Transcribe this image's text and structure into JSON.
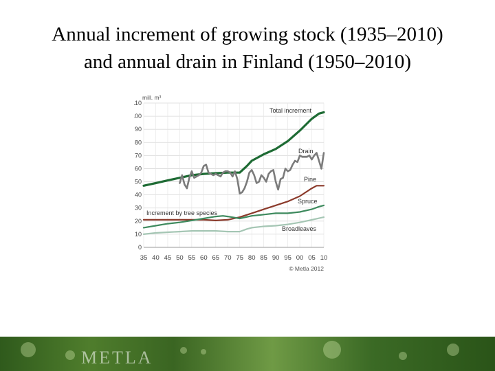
{
  "slide": {
    "title_line1": "Annual increment of growing stock (1935–2010)",
    "title_line2": "and annual drain in Finland (1950–2010)"
  },
  "footer": {
    "logo_text": "METLA"
  },
  "chart_data": {
    "type": "line",
    "y_unit_label": "mill. m³",
    "x_tick_labels": [
      "35",
      "40",
      "45",
      "50",
      "55",
      "60",
      "65",
      "70",
      "75",
      "80",
      "85",
      "90",
      "95",
      "00",
      "05",
      "10"
    ],
    "x_ticks": [
      1935,
      1940,
      1945,
      1950,
      1955,
      1960,
      1965,
      1970,
      1975,
      1980,
      1985,
      1990,
      1995,
      2000,
      2005,
      2010
    ],
    "xlim": [
      1935,
      2010
    ],
    "y_ticks": [
      0,
      10,
      20,
      30,
      40,
      50,
      60,
      70,
      80,
      90,
      100,
      110
    ],
    "ylim": [
      0,
      110
    ],
    "grid": true,
    "credit": "© Metla 2012",
    "annotation": "Increment by tree species",
    "series": [
      {
        "name": "Total increment",
        "color": "#1e6b34",
        "width": 3.2,
        "points": [
          [
            1935,
            47
          ],
          [
            1940,
            49
          ],
          [
            1945,
            51
          ],
          [
            1950,
            53
          ],
          [
            1955,
            55
          ],
          [
            1960,
            56
          ],
          [
            1965,
            56.5
          ],
          [
            1970,
            57
          ],
          [
            1975,
            57
          ],
          [
            1978,
            62
          ],
          [
            1980,
            66
          ],
          [
            1985,
            71
          ],
          [
            1990,
            75
          ],
          [
            1995,
            81
          ],
          [
            2000,
            89
          ],
          [
            2005,
            98
          ],
          [
            2008,
            102
          ],
          [
            2010,
            103
          ]
        ]
      },
      {
        "name": "Drain",
        "color": "#7b7b7b",
        "width": 2.6,
        "points": [
          [
            1950,
            49
          ],
          [
            1951,
            55
          ],
          [
            1952,
            48
          ],
          [
            1953,
            45
          ],
          [
            1954,
            53
          ],
          [
            1955,
            58
          ],
          [
            1956,
            53
          ],
          [
            1957,
            54
          ],
          [
            1958,
            55
          ],
          [
            1959,
            57
          ],
          [
            1960,
            62
          ],
          [
            1961,
            63
          ],
          [
            1962,
            57
          ],
          [
            1963,
            56
          ],
          [
            1964,
            55
          ],
          [
            1965,
            56
          ],
          [
            1966,
            55
          ],
          [
            1967,
            54
          ],
          [
            1968,
            57
          ],
          [
            1969,
            58
          ],
          [
            1970,
            58
          ],
          [
            1971,
            57
          ],
          [
            1972,
            54
          ],
          [
            1973,
            58
          ],
          [
            1974,
            52
          ],
          [
            1975,
            41
          ],
          [
            1976,
            42
          ],
          [
            1977,
            45
          ],
          [
            1978,
            50
          ],
          [
            1979,
            57
          ],
          [
            1980,
            59
          ],
          [
            1981,
            55
          ],
          [
            1982,
            49
          ],
          [
            1983,
            50
          ],
          [
            1984,
            55
          ],
          [
            1985,
            53
          ],
          [
            1986,
            50
          ],
          [
            1987,
            56
          ],
          [
            1988,
            58
          ],
          [
            1989,
            59
          ],
          [
            1990,
            50
          ],
          [
            1991,
            44
          ],
          [
            1992,
            52
          ],
          [
            1993,
            53
          ],
          [
            1994,
            60
          ],
          [
            1995,
            58
          ],
          [
            1996,
            59
          ],
          [
            1997,
            63
          ],
          [
            1998,
            66
          ],
          [
            1999,
            65
          ],
          [
            2000,
            70
          ],
          [
            2001,
            69
          ],
          [
            2002,
            69
          ],
          [
            2003,
            69
          ],
          [
            2004,
            70
          ],
          [
            2005,
            67
          ],
          [
            2006,
            70
          ],
          [
            2007,
            72
          ],
          [
            2008,
            66
          ],
          [
            2009,
            60
          ],
          [
            2010,
            72
          ]
        ]
      },
      {
        "name": "Pine",
        "color": "#8b3a2b",
        "width": 2.2,
        "points": [
          [
            1935,
            21
          ],
          [
            1945,
            21
          ],
          [
            1955,
            21
          ],
          [
            1960,
            21
          ],
          [
            1965,
            20.5
          ],
          [
            1970,
            21
          ],
          [
            1975,
            23
          ],
          [
            1980,
            26
          ],
          [
            1985,
            29
          ],
          [
            1990,
            32
          ],
          [
            1995,
            35
          ],
          [
            2000,
            39
          ],
          [
            2005,
            45
          ],
          [
            2007,
            47
          ],
          [
            2010,
            47
          ]
        ]
      },
      {
        "name": "Spruce",
        "color": "#3e8a5e",
        "width": 2.2,
        "points": [
          [
            1935,
            15
          ],
          [
            1940,
            16.5
          ],
          [
            1945,
            18
          ],
          [
            1950,
            19
          ],
          [
            1955,
            20.5
          ],
          [
            1960,
            22
          ],
          [
            1965,
            23.5
          ],
          [
            1968,
            24
          ],
          [
            1970,
            23.5
          ],
          [
            1975,
            22
          ],
          [
            1980,
            24
          ],
          [
            1985,
            25
          ],
          [
            1990,
            26
          ],
          [
            1995,
            26
          ],
          [
            2000,
            27
          ],
          [
            2005,
            29
          ],
          [
            2008,
            31
          ],
          [
            2010,
            32
          ]
        ]
      },
      {
        "name": "Broadleaves",
        "color": "#a5c6b4",
        "width": 2.2,
        "points": [
          [
            1935,
            10
          ],
          [
            1940,
            11
          ],
          [
            1945,
            11.5
          ],
          [
            1950,
            12
          ],
          [
            1955,
            12.5
          ],
          [
            1960,
            12.5
          ],
          [
            1965,
            12.5
          ],
          [
            1970,
            12
          ],
          [
            1975,
            12
          ],
          [
            1978,
            14
          ],
          [
            1980,
            15
          ],
          [
            1985,
            16
          ],
          [
            1990,
            16.5
          ],
          [
            1995,
            17.5
          ],
          [
            2000,
            19
          ],
          [
            2005,
            21
          ],
          [
            2010,
            23
          ]
        ]
      }
    ]
  }
}
